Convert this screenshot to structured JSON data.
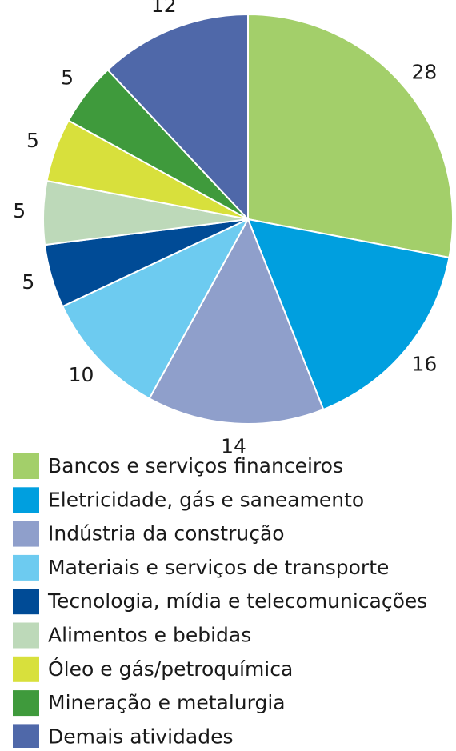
{
  "chart_data": {
    "type": "pie",
    "categories": [
      "Bancos e serviços financeiros",
      "Eletricidade, gás e saneamento",
      "Indústria da construção",
      "Materiais e serviços de transporte",
      "Tecnologia, mídia e telecomunicações",
      "Alimentos e bebidas",
      "Óleo e gás/petroquímica",
      "Mineração e metalurgia",
      "Demais atividades"
    ],
    "values": [
      28,
      16,
      14,
      10,
      5,
      5,
      5,
      5,
      12
    ],
    "colors": [
      "#a3cf6a",
      "#009fdf",
      "#8f9fcb",
      "#6dcbf0",
      "#004b96",
      "#bdd9b9",
      "#d8e03c",
      "#3f9a3c",
      "#4f68a9"
    ],
    "legend": "bottom"
  }
}
